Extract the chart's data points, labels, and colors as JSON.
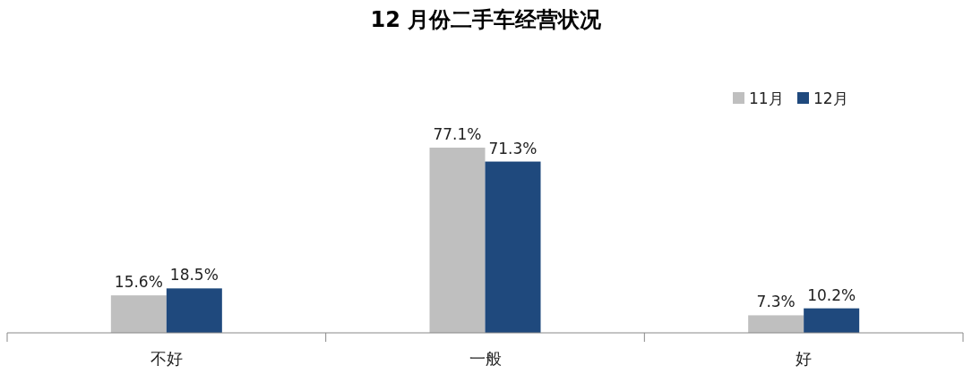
{
  "chart_data": {
    "type": "bar",
    "title": "12 月份二手车经营状况",
    "categories": [
      "不好",
      "一般",
      "好"
    ],
    "series": [
      {
        "name": "11月",
        "color": "#bfbfbf",
        "values": [
          15.6,
          77.1,
          7.3
        ],
        "value_labels": [
          "15.6%",
          "77.1%",
          "7.3%"
        ]
      },
      {
        "name": "12月",
        "color": "#1f497d",
        "values": [
          18.5,
          71.3,
          10.2
        ],
        "value_labels": [
          "18.5%",
          "71.3%",
          "10.2%"
        ]
      }
    ],
    "legend": "top right"
  }
}
